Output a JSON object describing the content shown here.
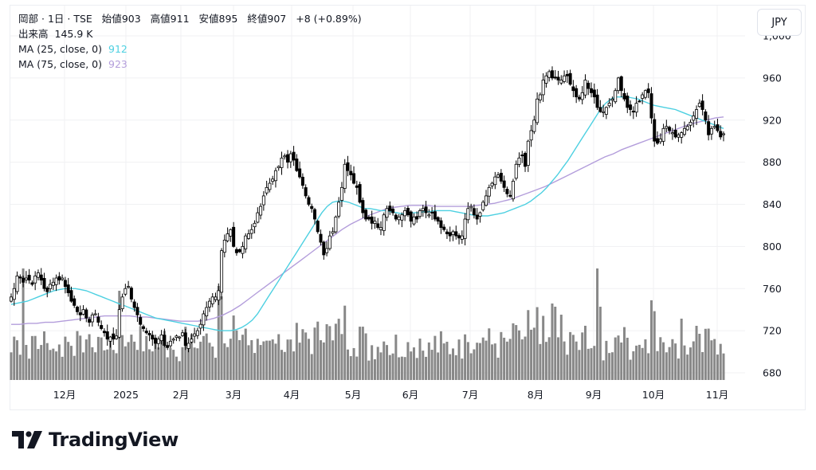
{
  "header": {
    "symbol": "岡部",
    "interval": "1日",
    "exchange": "TSE",
    "open_label": "始値",
    "open": "903",
    "high_label": "高値",
    "high": "911",
    "low_label": "安値",
    "low": "895",
    "close_label": "終値",
    "close": "907",
    "change": "+8 (+0.89%)",
    "volume_label": "出来高",
    "volume": "145.9 K",
    "ma1_label": "MA (25, close, 0)",
    "ma1_value": "912",
    "ma2_label": "MA (75, close, 0)",
    "ma2_value": "923"
  },
  "currency_button": "JPY",
  "branding": {
    "logo_text": "TradingView"
  },
  "colors": {
    "ma25": "#4dd0e1",
    "ma75": "#b39ddb",
    "volume": "#888888",
    "candle": "#000000",
    "grid": "#f0f1f3"
  },
  "chart_data": {
    "type": "candlestick",
    "title": "岡部 · 1日 · TSE",
    "xlabel": "",
    "ylabel": "JPY",
    "ylim": [
      672,
      1005
    ],
    "y_ticks": [
      680,
      720,
      760,
      800,
      840,
      880,
      920,
      960,
      1000
    ],
    "x_ticks": [
      {
        "label": "12月",
        "x": 81
      },
      {
        "label": "2025",
        "x": 158
      },
      {
        "label": "2月",
        "x": 227
      },
      {
        "label": "3月",
        "x": 293
      },
      {
        "label": "4月",
        "x": 366
      },
      {
        "label": "5月",
        "x": 443
      },
      {
        "label": "6月",
        "x": 515
      },
      {
        "label": "7月",
        "x": 590
      },
      {
        "label": "8月",
        "x": 672
      },
      {
        "label": "9月",
        "x": 745
      },
      {
        "label": "10月",
        "x": 820
      },
      {
        "label": "11月",
        "x": 900
      }
    ],
    "grid": true,
    "legend_position": "top-left",
    "closes": [
      752,
      760,
      772,
      770,
      766,
      770,
      768,
      764,
      772,
      775,
      768,
      760,
      757,
      764,
      766,
      770,
      768,
      770,
      762,
      756,
      748,
      744,
      738,
      735,
      740,
      732,
      728,
      735,
      736,
      728,
      722,
      718,
      712,
      714,
      712,
      715,
      740,
      752,
      760,
      762,
      750,
      742,
      735,
      726,
      722,
      718,
      716,
      712,
      708,
      712,
      716,
      706,
      704,
      710,
      712,
      715,
      714,
      718,
      706,
      708,
      712,
      717,
      720,
      726,
      736,
      742,
      748,
      752,
      752,
      758,
      796,
      806,
      812,
      816,
      800,
      794,
      795,
      800,
      810,
      812,
      816,
      822,
      832,
      838,
      848,
      856,
      860,
      864,
      872,
      876,
      884,
      886,
      880,
      888,
      882,
      872,
      866,
      858,
      848,
      840,
      836,
      826,
      814,
      804,
      792,
      798,
      810,
      814,
      828,
      842,
      856,
      878,
      872,
      868,
      860,
      856,
      842,
      832,
      826,
      826,
      822,
      824,
      818,
      818,
      830,
      836,
      834,
      832,
      826,
      828,
      830,
      834,
      830,
      824,
      828,
      826,
      834,
      836,
      832,
      830,
      832,
      826,
      824,
      818,
      816,
      812,
      810,
      814,
      810,
      808,
      810,
      826,
      836,
      838,
      830,
      826,
      832,
      842,
      848,
      856,
      860,
      866,
      868,
      862,
      856,
      850,
      848,
      862,
      878,
      884,
      886,
      876,
      900,
      910,
      920,
      940,
      944,
      958,
      962,
      966,
      960,
      960,
      958,
      958,
      962,
      962,
      954,
      948,
      942,
      940,
      946,
      958,
      950,
      946,
      942,
      932,
      928,
      928,
      932,
      936,
      940,
      948,
      960,
      948,
      940,
      932,
      930,
      928,
      936,
      938,
      944,
      948,
      946,
      922,
      900,
      898,
      902,
      912,
      914,
      910,
      908,
      904,
      906,
      908,
      912,
      914,
      918,
      924,
      930,
      936,
      930,
      920,
      906,
      912,
      914,
      910,
      904,
      907
    ],
    "ma25": [
      745,
      746,
      747,
      748,
      750,
      752,
      754,
      756,
      758,
      759,
      760,
      760,
      760,
      759,
      758,
      756,
      754,
      752,
      750,
      748,
      746,
      744,
      742,
      740,
      738,
      736,
      734,
      732,
      731,
      730,
      729,
      728,
      727,
      726,
      725,
      724,
      723,
      722,
      721,
      720,
      720,
      720,
      721,
      723,
      726,
      730,
      736,
      744,
      752,
      760,
      768,
      776,
      784,
      792,
      800,
      808,
      816,
      824,
      832,
      838,
      842,
      843,
      843,
      842,
      840,
      838,
      836,
      836,
      835,
      834,
      834,
      833,
      832,
      831,
      831,
      832,
      832,
      833,
      833,
      834,
      834,
      834,
      834,
      833,
      832,
      831,
      830,
      829,
      829,
      829,
      830,
      831,
      832,
      834,
      836,
      838,
      840,
      843,
      847,
      851,
      856,
      862,
      868,
      875,
      882,
      890,
      898,
      906,
      914,
      922,
      930,
      936,
      940,
      942,
      942,
      942,
      941,
      940,
      938,
      936,
      934,
      933,
      932,
      931,
      930,
      928,
      926,
      924,
      922,
      920,
      918,
      916,
      914,
      912
    ],
    "ma75": [
      726,
      726,
      727,
      727,
      728,
      728,
      729,
      730,
      731,
      732,
      733,
      734,
      734,
      734,
      734,
      733,
      733,
      732,
      731,
      730,
      729,
      729,
      729,
      730,
      732,
      735,
      739,
      744,
      750,
      756,
      762,
      768,
      774,
      780,
      786,
      792,
      798,
      804,
      810,
      816,
      821,
      825,
      829,
      832,
      835,
      837,
      838,
      839,
      839,
      839,
      838,
      838,
      838,
      838,
      838,
      839,
      840,
      841,
      843,
      845,
      848,
      851,
      854,
      857,
      861,
      865,
      869,
      873,
      877,
      881,
      885,
      888,
      892,
      895,
      898,
      901,
      904,
      907,
      910,
      913,
      916,
      918,
      920,
      922,
      923
    ],
    "volume_scale_note": "bars bottom at y=477, tallest ≈ 750K"
  }
}
